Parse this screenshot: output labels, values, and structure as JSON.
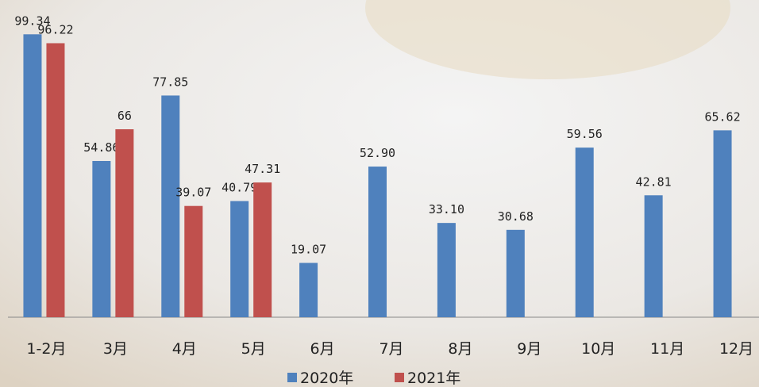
{
  "chart_data": {
    "type": "bar",
    "categories": [
      "1-2月",
      "3月",
      "4月",
      "5月",
      "6月",
      "7月",
      "8月",
      "9月",
      "10月",
      "11月",
      "12月"
    ],
    "series": [
      {
        "name": "2020年",
        "color": "#4f81bd",
        "values": [
          99.34,
          54.86,
          77.85,
          40.79,
          19.07,
          52.9,
          33.1,
          30.68,
          59.56,
          42.81,
          65.62
        ],
        "value_labels": [
          "99.34",
          "54.86",
          "77.85",
          "40.79",
          "19.07",
          "52.90",
          "33.10",
          "30.68",
          "59.56",
          "42.81",
          "65.62"
        ]
      },
      {
        "name": "2021年",
        "color": "#c0504d",
        "values": [
          96.22,
          66,
          39.07,
          47.31,
          null,
          null,
          null,
          null,
          null,
          null,
          null
        ],
        "value_labels": [
          "96.22",
          "66",
          "39.07",
          "47.31",
          null,
          null,
          null,
          null,
          null,
          null,
          null
        ]
      }
    ],
    "ylim": [
      0,
      110
    ],
    "legend": "bottom"
  }
}
